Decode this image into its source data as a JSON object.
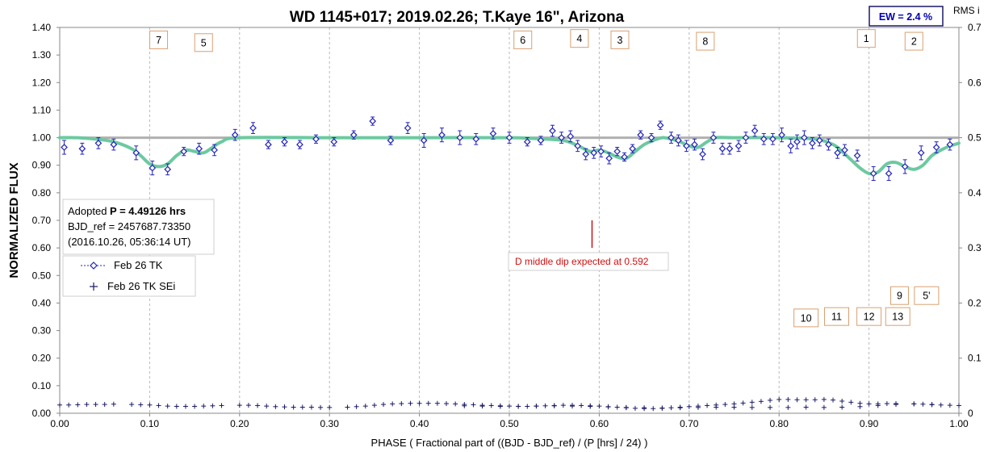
{
  "chart_data": {
    "type": "scatter",
    "title": "WD 1145+017; 2019.02.26; T.Kaye 16\", Arizona",
    "xlabel": "PHASE ( Fractional part of ((BJD - BJD_ref) / (P [hrs] / 24) )",
    "ylabel": "NORMALIZED FLUX",
    "y2label": "RMS i",
    "xlim": [
      0,
      1
    ],
    "ylim": [
      0,
      1.4
    ],
    "y2lim": [
      0,
      0.7
    ],
    "x_ticks": [
      "0.00",
      "0.10",
      "0.20",
      "0.30",
      "0.40",
      "0.50",
      "0.60",
      "0.70",
      "0.80",
      "0.90",
      "1.00"
    ],
    "y_ticks": [
      "0.00",
      "0.10",
      "0.20",
      "0.30",
      "0.40",
      "0.50",
      "0.60",
      "0.70",
      "0.80",
      "0.90",
      "1.00",
      "1.10",
      "1.20",
      "1.30",
      "1.40"
    ],
    "y2_ticks": [
      "0",
      "0.1",
      "0.2",
      "0.3",
      "0.4",
      "0.5",
      "0.6",
      "0.7"
    ],
    "grid": "vertical dashed",
    "reference_line": 1.0,
    "ew_label": "EW =  2.4 %",
    "info_box": {
      "line1_prefix": "Adopted ",
      "line1_bold": "P = 4.49126 hrs",
      "line2": "BJD_ref = 2457687.73350",
      "line3": "(2016.10.26, 05:36:14 UT)"
    },
    "legend": [
      {
        "label": "Feb 26 TK",
        "marker": "diamond",
        "color": "#2222bb"
      },
      {
        "label": "Feb 26 TK SEi",
        "marker": "plus",
        "color": "#1a1a66"
      }
    ],
    "annotation": {
      "text": "D middle dip expected at 0.592",
      "x": 0.592,
      "marker_y": [
        0.6,
        0.7
      ]
    },
    "dip_labels": [
      {
        "text": "7",
        "x": 0.11,
        "y": 1.355
      },
      {
        "text": "5",
        "x": 0.16,
        "y": 1.345
      },
      {
        "text": "6",
        "x": 0.515,
        "y": 1.355
      },
      {
        "text": "4",
        "x": 0.578,
        "y": 1.36
      },
      {
        "text": "3",
        "x": 0.623,
        "y": 1.355
      },
      {
        "text": "8",
        "x": 0.718,
        "y": 1.35
      },
      {
        "text": "1",
        "x": 0.897,
        "y": 1.36
      },
      {
        "text": "2",
        "x": 0.95,
        "y": 1.35
      },
      {
        "text": "9",
        "x": 0.934,
        "y": 0.427
      },
      {
        "text": "5'",
        "x": 0.964,
        "y": 0.427
      },
      {
        "text": "10",
        "x": 0.83,
        "y": 0.346
      },
      {
        "text": "11",
        "x": 0.864,
        "y": 0.351
      },
      {
        "text": "12",
        "x": 0.9,
        "y": 0.351
      },
      {
        "text": "13",
        "x": 0.932,
        "y": 0.351
      }
    ],
    "series": [
      {
        "name": "Feb 26 TK",
        "x": [
          0.005,
          0.025,
          0.043,
          0.06,
          0.085,
          0.103,
          0.12,
          0.138,
          0.155,
          0.172,
          0.195,
          0.215,
          0.232,
          0.25,
          0.267,
          0.285,
          0.305,
          0.327,
          0.348,
          0.368,
          0.387,
          0.405,
          0.425,
          0.445,
          0.463,
          0.482,
          0.5,
          0.52,
          0.535,
          0.548,
          0.558,
          0.568,
          0.576,
          0.585,
          0.594,
          0.602,
          0.611,
          0.62,
          0.628,
          0.637,
          0.646,
          0.658,
          0.668,
          0.68,
          0.688,
          0.697,
          0.706,
          0.715,
          0.727,
          0.737,
          0.745,
          0.755,
          0.763,
          0.773,
          0.783,
          0.793,
          0.803,
          0.813,
          0.82,
          0.828,
          0.837,
          0.845,
          0.855,
          0.865,
          0.873,
          0.887,
          0.905,
          0.922,
          0.94,
          0.958,
          0.975,
          0.99
        ],
        "y": [
          0.965,
          0.96,
          0.98,
          0.975,
          0.945,
          0.89,
          0.885,
          0.95,
          0.96,
          0.955,
          1.01,
          1.035,
          0.975,
          0.985,
          0.975,
          0.995,
          0.985,
          1.01,
          1.06,
          0.99,
          1.035,
          0.99,
          1.01,
          1.0,
          0.995,
          1.015,
          1.0,
          0.985,
          0.99,
          1.025,
          1.0,
          1.005,
          0.97,
          0.94,
          0.945,
          0.95,
          0.925,
          0.95,
          0.93,
          0.96,
          1.01,
          1.0,
          1.045,
          1.0,
          0.99,
          0.97,
          0.975,
          0.94,
          1.0,
          0.96,
          0.96,
          0.97,
          1.0,
          1.025,
          0.995,
          0.995,
          1.01,
          0.97,
          0.985,
          1.0,
          0.98,
          0.99,
          0.975,
          0.945,
          0.955,
          0.935,
          0.87,
          0.87,
          0.895,
          0.945,
          0.965,
          0.975
        ],
        "err": [
          0.025,
          0.02,
          0.02,
          0.02,
          0.025,
          0.025,
          0.02,
          0.015,
          0.02,
          0.02,
          0.02,
          0.02,
          0.015,
          0.015,
          0.015,
          0.015,
          0.015,
          0.015,
          0.015,
          0.015,
          0.02,
          0.025,
          0.025,
          0.025,
          0.02,
          0.02,
          0.02,
          0.015,
          0.015,
          0.02,
          0.02,
          0.02,
          0.02,
          0.02,
          0.02,
          0.02,
          0.02,
          0.015,
          0.015,
          0.015,
          0.015,
          0.015,
          0.015,
          0.02,
          0.02,
          0.02,
          0.02,
          0.02,
          0.02,
          0.02,
          0.02,
          0.02,
          0.02,
          0.02,
          0.02,
          0.02,
          0.025,
          0.025,
          0.025,
          0.025,
          0.02,
          0.02,
          0.02,
          0.02,
          0.02,
          0.02,
          0.025,
          0.025,
          0.025,
          0.025,
          0.02,
          0.02
        ]
      },
      {
        "name": "Feb 26 TK SEi",
        "x": [
          0.0,
          0.01,
          0.02,
          0.03,
          0.04,
          0.05,
          0.06,
          0.08,
          0.09,
          0.1,
          0.11,
          0.12,
          0.13,
          0.14,
          0.15,
          0.16,
          0.17,
          0.18,
          0.2,
          0.21,
          0.22,
          0.23,
          0.24,
          0.25,
          0.26,
          0.27,
          0.28,
          0.29,
          0.3,
          0.32,
          0.33,
          0.34,
          0.35,
          0.36,
          0.37,
          0.38,
          0.39,
          0.4,
          0.41,
          0.42,
          0.43,
          0.44,
          0.45,
          0.46,
          0.47,
          0.48,
          0.49,
          0.5,
          0.51,
          0.52,
          0.53,
          0.54,
          0.55,
          0.56,
          0.57,
          0.58,
          0.59,
          0.6,
          0.61,
          0.62,
          0.63,
          0.64,
          0.65,
          0.66,
          0.67,
          0.68,
          0.69,
          0.7,
          0.71,
          0.72,
          0.73,
          0.74,
          0.75,
          0.76,
          0.77,
          0.78,
          0.79,
          0.8,
          0.81,
          0.82,
          0.83,
          0.84,
          0.85,
          0.86,
          0.87,
          0.88,
          0.89,
          0.9,
          0.91,
          0.92,
          0.93,
          0.95,
          0.96,
          0.97,
          0.98,
          0.99,
          1.0
        ],
        "y": [
          0.03,
          0.03,
          0.031,
          0.032,
          0.032,
          0.032,
          0.033,
          0.032,
          0.031,
          0.03,
          0.028,
          0.026,
          0.025,
          0.025,
          0.025,
          0.026,
          0.027,
          0.028,
          0.029,
          0.029,
          0.028,
          0.026,
          0.024,
          0.023,
          0.022,
          0.022,
          0.022,
          0.021,
          0.021,
          0.022,
          0.024,
          0.026,
          0.029,
          0.032,
          0.034,
          0.035,
          0.036,
          0.036,
          0.036,
          0.036,
          0.035,
          0.034,
          0.032,
          0.031,
          0.029,
          0.028,
          0.027,
          0.026,
          0.025,
          0.025,
          0.026,
          0.027,
          0.028,
          0.029,
          0.029,
          0.028,
          0.027,
          0.026,
          0.024,
          0.022,
          0.02,
          0.018,
          0.017,
          0.017,
          0.018,
          0.02,
          0.022,
          0.024,
          0.026,
          0.028,
          0.03,
          0.032,
          0.034,
          0.037,
          0.04,
          0.043,
          0.047,
          0.05,
          0.05,
          0.049,
          0.049,
          0.049,
          0.05,
          0.048,
          0.044,
          0.04,
          0.036,
          0.034,
          0.034,
          0.035,
          0.035,
          0.034,
          0.033,
          0.031,
          0.03,
          0.029,
          0.028
        ]
      },
      {
        "name": "",
        "x": [
          0.45,
          0.47,
          0.49,
          0.51,
          0.53,
          0.55,
          0.57,
          0.59,
          0.61,
          0.63,
          0.65,
          0.67,
          0.69,
          0.71,
          0.73,
          0.75,
          0.77,
          0.79,
          0.81,
          0.83,
          0.85,
          0.87,
          0.89,
          0.91,
          0.93,
          0.95,
          0.97
        ],
        "y": [
          0.027,
          0.026,
          0.025,
          0.025,
          0.026,
          0.027,
          0.026,
          0.025,
          0.023,
          0.021,
          0.02,
          0.019,
          0.02,
          0.021,
          0.022,
          0.022,
          0.021,
          0.021,
          0.021,
          0.022,
          0.021,
          0.022,
          0.024,
          0.028,
          0.032,
          0.034,
          0.032
        ]
      }
    ],
    "model_curve": {
      "x": [
        0.0,
        0.02,
        0.04,
        0.06,
        0.08,
        0.09,
        0.1,
        0.11,
        0.12,
        0.13,
        0.14,
        0.15,
        0.16,
        0.17,
        0.18,
        0.2,
        0.3,
        0.4,
        0.5,
        0.52,
        0.54,
        0.56,
        0.57,
        0.58,
        0.59,
        0.6,
        0.61,
        0.62,
        0.63,
        0.64,
        0.65,
        0.66,
        0.67,
        0.68,
        0.69,
        0.7,
        0.71,
        0.72,
        0.73,
        0.75,
        0.8,
        0.84,
        0.86,
        0.87,
        0.88,
        0.89,
        0.9,
        0.91,
        0.92,
        0.93,
        0.94,
        0.95,
        0.96,
        0.97,
        0.98,
        0.99,
        1.0
      ],
      "y": [
        1.0,
        1.0,
        0.995,
        0.985,
        0.96,
        0.935,
        0.905,
        0.895,
        0.905,
        0.935,
        0.955,
        0.95,
        0.945,
        0.965,
        0.985,
        1.0,
        1.0,
        1.0,
        1.0,
        0.998,
        0.995,
        0.99,
        0.98,
        0.965,
        0.95,
        0.955,
        0.945,
        0.93,
        0.925,
        0.95,
        0.975,
        0.99,
        1.0,
        0.995,
        0.985,
        0.97,
        0.965,
        0.985,
        1.0,
        1.0,
        1.0,
        0.995,
        0.975,
        0.95,
        0.92,
        0.89,
        0.87,
        0.875,
        0.905,
        0.91,
        0.895,
        0.885,
        0.9,
        0.935,
        0.955,
        0.97,
        0.98
      ]
    }
  }
}
